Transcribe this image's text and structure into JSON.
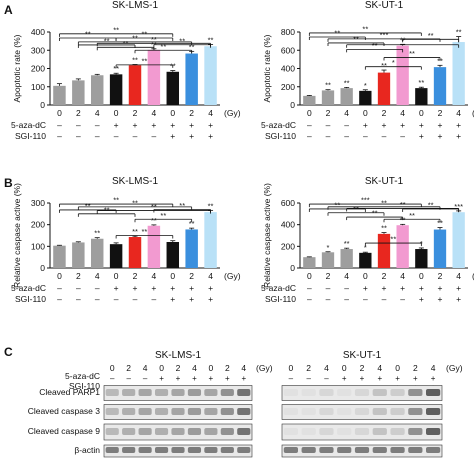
{
  "figure": {
    "panel_labels": [
      "A",
      "B",
      "C"
    ],
    "gy_unit": "(Gy)",
    "treatment_labels": {
      "aza": "5-aza-dC",
      "sgi": "SGI-110"
    },
    "treatments": {
      "doses": [
        "0",
        "2",
        "4",
        "0",
        "2",
        "4",
        "0",
        "2",
        "4"
      ],
      "aza": [
        "–",
        "–",
        "–",
        "+",
        "+",
        "+",
        "+",
        "+",
        "+"
      ],
      "sgi": [
        "–",
        "–",
        "–",
        "–",
        "–",
        "–",
        "+",
        "+",
        "+"
      ]
    },
    "bar_colors": [
      "#9e9e9e",
      "#9e9e9e",
      "#9e9e9e",
      "#111111",
      "#e8271f",
      "#f29ad0",
      "#111111",
      "#3a8fde",
      "#b9e1f7"
    ]
  },
  "chart_data": [
    {
      "panel": "A",
      "type": "bar",
      "title": "SK-LMS-1",
      "ylabel": "Apoptotic rate (%)",
      "ylim": [
        0,
        400
      ],
      "yticks": [
        "0",
        "100",
        "200",
        "300",
        "400"
      ],
      "values": [
        105,
        135,
        163,
        168,
        218,
        302,
        182,
        282,
        322
      ],
      "errors": [
        12,
        8,
        5,
        6,
        4,
        6,
        7,
        12,
        10
      ],
      "stars": [
        "",
        "",
        "",
        "**",
        "**",
        "**",
        "**",
        "**",
        "**"
      ],
      "brackets": [
        {
          "from": 0,
          "to": 6,
          "y": 390,
          "label": "**"
        },
        {
          "from": 0,
          "to": 3,
          "y": 367,
          "label": "**"
        },
        {
          "from": 3,
          "to": 6,
          "y": 367,
          "label": "**"
        },
        {
          "from": 1,
          "to": 7,
          "y": 346,
          "label": "**"
        },
        {
          "from": 1,
          "to": 4,
          "y": 329,
          "label": "**"
        },
        {
          "from": 2,
          "to": 8,
          "y": 338,
          "label": "**"
        },
        {
          "from": 2,
          "to": 5,
          "y": 316,
          "label": "**"
        },
        {
          "from": 3,
          "to": 6,
          "y": 220,
          "label": "**"
        },
        {
          "from": 4,
          "to": 7,
          "y": 300,
          "label": "**"
        },
        {
          "from": 5,
          "to": 8,
          "y": 330,
          "label": "**"
        }
      ]
    },
    {
      "panel": "A",
      "type": "bar",
      "title": "SK-UT-1",
      "ylabel": "Apoptotic rate (%)",
      "ylim": [
        0,
        800
      ],
      "yticks": [
        "0",
        "200",
        "400",
        "600",
        "800"
      ],
      "values": [
        100,
        160,
        185,
        155,
        355,
        650,
        185,
        415,
        690
      ],
      "errors": [
        5,
        8,
        8,
        12,
        28,
        15,
        10,
        20,
        60
      ],
      "stars": [
        "",
        "**",
        "**",
        "*",
        "**",
        "**",
        "**",
        "**",
        "**"
      ],
      "brackets": [
        {
          "from": 0,
          "to": 6,
          "y": 790,
          "label": "**"
        },
        {
          "from": 0,
          "to": 3,
          "y": 745,
          "label": "**"
        },
        {
          "from": 1,
          "to": 7,
          "y": 725,
          "label": "***"
        },
        {
          "from": 1,
          "to": 4,
          "y": 680,
          "label": "**"
        },
        {
          "from": 2,
          "to": 8,
          "y": 660,
          "label": "*"
        },
        {
          "from": 2,
          "to": 5,
          "y": 610,
          "label": "**"
        },
        {
          "from": 3,
          "to": 6,
          "y": 420,
          "label": "*"
        },
        {
          "from": 4,
          "to": 7,
          "y": 520,
          "label": "**"
        },
        {
          "from": 5,
          "to": 8,
          "y": 720,
          "label": "**"
        }
      ]
    },
    {
      "panel": "B",
      "type": "bar",
      "title": "SK-LMS-1",
      "ylabel": "Relative caspase active (%)",
      "ylim": [
        0,
        300
      ],
      "yticks": [
        "0",
        "100",
        "200",
        "300"
      ],
      "values": [
        103,
        118,
        135,
        110,
        143,
        195,
        120,
        178,
        258
      ],
      "errors": [
        2,
        3,
        5,
        6,
        4,
        4,
        6,
        6,
        8
      ],
      "stars": [
        "",
        "",
        "**",
        "",
        "**",
        "**",
        "",
        "**",
        "**"
      ],
      "brackets": [
        {
          "from": 0,
          "to": 6,
          "y": 295,
          "label": "**"
        },
        {
          "from": 0,
          "to": 3,
          "y": 268,
          "label": "**"
        },
        {
          "from": 1,
          "to": 7,
          "y": 282,
          "label": "**"
        },
        {
          "from": 1,
          "to": 4,
          "y": 250,
          "label": "**"
        },
        {
          "from": 2,
          "to": 8,
          "y": 265,
          "label": "**"
        },
        {
          "from": 3,
          "to": 6,
          "y": 150,
          "label": "**"
        },
        {
          "from": 4,
          "to": 7,
          "y": 225,
          "label": "**"
        },
        {
          "from": 5,
          "to": 8,
          "y": 270,
          "label": "**"
        }
      ]
    },
    {
      "panel": "B",
      "type": "bar",
      "title": "SK-UT-1",
      "ylabel": "Relative caspase active (%)",
      "ylim": [
        0,
        600
      ],
      "yticks": [
        "0",
        "200",
        "400",
        "600"
      ],
      "values": [
        100,
        145,
        175,
        140,
        315,
        395,
        175,
        355,
        515
      ],
      "errors": [
        3,
        5,
        8,
        6,
        12,
        8,
        10,
        18,
        12
      ],
      "stars": [
        "",
        "*",
        "**",
        "*",
        "**",
        "**",
        "*",
        "**",
        "***"
      ],
      "brackets": [
        {
          "from": 0,
          "to": 6,
          "y": 590,
          "label": "***"
        },
        {
          "from": 0,
          "to": 3,
          "y": 545,
          "label": "**"
        },
        {
          "from": 1,
          "to": 7,
          "y": 565,
          "label": "**"
        },
        {
          "from": 1,
          "to": 4,
          "y": 510,
          "label": "**"
        },
        {
          "from": 2,
          "to": 8,
          "y": 550,
          "label": "**"
        },
        {
          "from": 2,
          "to": 5,
          "y": 470,
          "label": "**"
        },
        {
          "from": 3,
          "to": 6,
          "y": 230,
          "label": "**"
        },
        {
          "from": 4,
          "to": 7,
          "y": 450,
          "label": "**"
        },
        {
          "from": 5,
          "to": 8,
          "y": 545,
          "label": "**"
        }
      ]
    }
  ],
  "western_blot": {
    "panels": [
      {
        "title": "SK-LMS-1",
        "ladder_lanes": 10
      },
      {
        "title": "SK-UT-1",
        "ladder_lanes": 9
      }
    ],
    "rows": [
      "Cleaved PARP1",
      "Cleaved caspase 3",
      "Cleaved caspase 9",
      "β-actin"
    ],
    "doses": [
      "0",
      "2",
      "4",
      "0",
      "2",
      "4",
      "0",
      "2",
      "4"
    ],
    "aza": [
      "–",
      "–",
      "–",
      "+",
      "+",
      "+",
      "+",
      "+",
      "+"
    ],
    "sgi": [
      "–",
      "–",
      "–",
      "–",
      "–",
      "–",
      "+",
      "+",
      "+"
    ]
  }
}
